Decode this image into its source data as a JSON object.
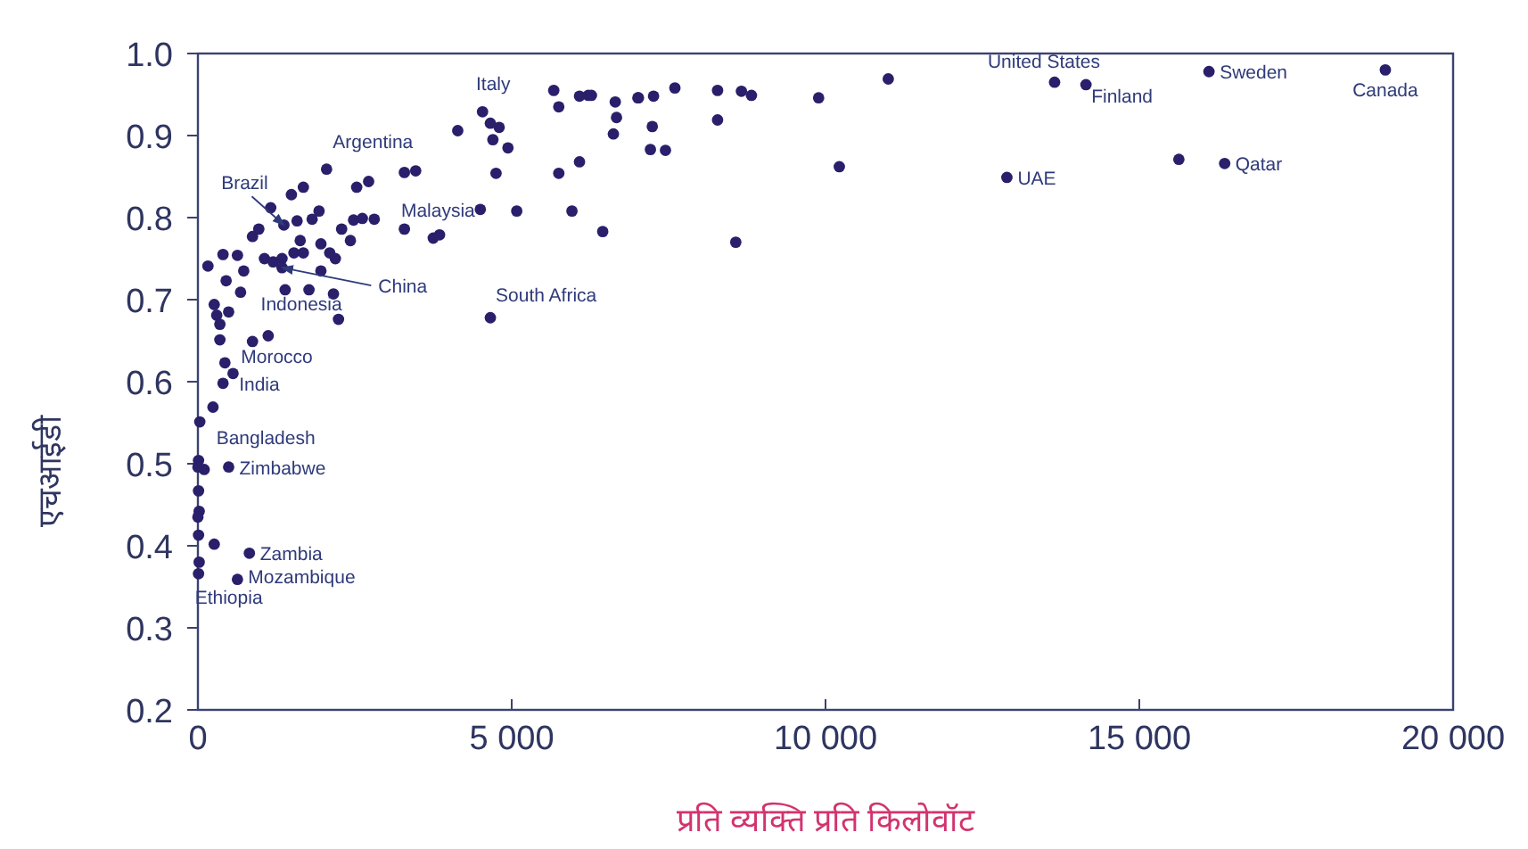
{
  "chart_data": {
    "type": "scatter",
    "xlabel": "प्रति व्यक्ति प्रति किलोवॉट",
    "ylabel": "एचआईडी",
    "xlim": [
      0,
      20000
    ],
    "ylim": [
      0.2,
      1.0
    ],
    "xticks": [
      0,
      {
        "value": 5000,
        "label": "5 000"
      },
      {
        "value": 10000,
        "label": "10 000"
      },
      {
        "value": 15000,
        "label": "15 000"
      },
      {
        "value": 20000,
        "label": "20 000"
      }
    ],
    "yticks": [
      0.2,
      0.3,
      0.4,
      0.5,
      0.6,
      0.7,
      0.8,
      0.9,
      {
        "value": 1.0,
        "label": "1.0"
      }
    ],
    "grid": false,
    "marker": "circle",
    "series": [
      {
        "color": "#2a1f6b",
        "x": [
          4535,
          4660,
          4800,
          4700,
          4940,
          4140,
          4750,
          5670,
          6080,
          6220,
          5750,
          6650,
          6670,
          6620,
          7010,
          5750,
          6080,
          4500,
          5080,
          5960,
          6450,
          3290,
          3470,
          2530,
          2720,
          2050,
          1490,
          1680,
          1160,
          1930,
          1580,
          1820,
          2290,
          2480,
          2620,
          2810,
          3290,
          3750,
          3850,
          870,
          970,
          1630,
          1530,
          2430,
          1960,
          2100,
          2190,
          1060,
          1200,
          1340,
          1680,
          160,
          400,
          630,
          730,
          1960,
          450,
          1390,
          1770,
          2160,
          2240,
          680,
          260,
          300,
          350,
          490,
          4660,
          350,
          870,
          1120,
          430,
          560,
          400,
          240,
          30,
          10,
          100,
          0,
          490,
          10,
          20,
          0,
          10,
          260,
          820,
          20,
          10,
          630,
          6270,
          7020,
          7260,
          7600,
          7240,
          7210,
          7450,
          8280,
          8280,
          8660,
          8820,
          9890,
          11000,
          10220,
          8570,
          12890,
          13650,
          14150,
          16110,
          18920,
          15630,
          16360,
          1370,
          1340
        ],
        "values": [
          0.929,
          0.915,
          0.91,
          0.895,
          0.885,
          0.906,
          0.854,
          0.955,
          0.948,
          0.949,
          0.935,
          0.941,
          0.922,
          0.902,
          0.946,
          0.854,
          0.868,
          0.81,
          0.808,
          0.808,
          0.783,
          0.855,
          0.857,
          0.837,
          0.844,
          0.859,
          0.828,
          0.837,
          0.812,
          0.808,
          0.796,
          0.798,
          0.786,
          0.797,
          0.799,
          0.798,
          0.786,
          0.775,
          0.779,
          0.777,
          0.786,
          0.772,
          0.757,
          0.772,
          0.768,
          0.757,
          0.75,
          0.75,
          0.746,
          0.75,
          0.757,
          0.741,
          0.755,
          0.754,
          0.735,
          0.735,
          0.723,
          0.712,
          0.712,
          0.707,
          0.676,
          0.709,
          0.694,
          0.681,
          0.67,
          0.685,
          0.678,
          0.651,
          0.649,
          0.656,
          0.623,
          0.61,
          0.598,
          0.569,
          0.551,
          0.504,
          0.493,
          0.496,
          0.496,
          0.467,
          0.442,
          0.435,
          0.413,
          0.402,
          0.391,
          0.38,
          0.366,
          0.359,
          0.949,
          0.946,
          0.948,
          0.958,
          0.911,
          0.883,
          0.882,
          0.955,
          0.919,
          0.954,
          0.949,
          0.946,
          0.969,
          0.862,
          0.77,
          0.849,
          0.965,
          0.962,
          0.978,
          0.98,
          0.871,
          0.866,
          0.791,
          0.739
        ]
      }
    ],
    "annotations": [
      {
        "text": "Italy",
        "x": 4535,
        "y": 0.929
      },
      {
        "text": "Argentina",
        "x": 2050,
        "y": 0.859
      },
      {
        "text": "Brazil",
        "x": 1370,
        "y": 0.791
      },
      {
        "text": "Malaysia",
        "x": 4500,
        "y": 0.81
      },
      {
        "text": "China",
        "x": 1340,
        "y": 0.739
      },
      {
        "text": "South Africa",
        "x": 4660,
        "y": 0.678
      },
      {
        "text": "Indonesia",
        "x": 2240,
        "y": 0.676
      },
      {
        "text": "Morocco",
        "x": 430,
        "y": 0.623
      },
      {
        "text": "India",
        "x": 400,
        "y": 0.598
      },
      {
        "text": "Bangladesh",
        "x": 10,
        "y": 0.504
      },
      {
        "text": "Zimbabwe",
        "x": 490,
        "y": 0.496
      },
      {
        "text": "Zambia",
        "x": 820,
        "y": 0.391
      },
      {
        "text": "Mozambique",
        "x": 630,
        "y": 0.359
      },
      {
        "text": "Ethiopia",
        "x": 10,
        "y": 0.366
      },
      {
        "text": "United States",
        "x": 13650,
        "y": 0.965
      },
      {
        "text": "Finland",
        "x": 14150,
        "y": 0.962
      },
      {
        "text": "UAE",
        "x": 12890,
        "y": 0.849
      },
      {
        "text": "Sweden",
        "x": 16110,
        "y": 0.978
      },
      {
        "text": "Qatar",
        "x": 16360,
        "y": 0.866
      },
      {
        "text": "Canada",
        "x": 18920,
        "y": 0.98
      }
    ]
  }
}
